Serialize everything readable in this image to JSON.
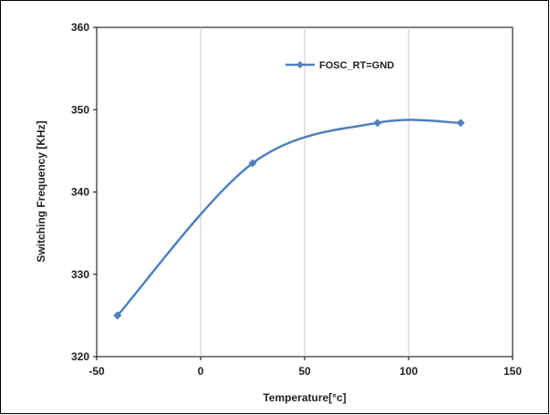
{
  "chart_data": {
    "type": "line",
    "title": "",
    "xlabel": "Temperature[°c]",
    "ylabel": "Switching Frequency [KHz]",
    "xlim": [
      -50,
      150
    ],
    "ylim": [
      320,
      360
    ],
    "xticks": [
      -50,
      0,
      50,
      100,
      150
    ],
    "yticks": [
      320,
      330,
      340,
      350,
      360
    ],
    "vertical_grid": true,
    "horizontal_grid": false,
    "legend_position": "top-right",
    "series": [
      {
        "name": "FOSC_RT=GND",
        "color": "#4f81bd",
        "marker": "diamond",
        "x": [
          -40,
          25,
          85,
          125
        ],
        "y": [
          325,
          343.5,
          348.4,
          348.4
        ]
      }
    ]
  }
}
